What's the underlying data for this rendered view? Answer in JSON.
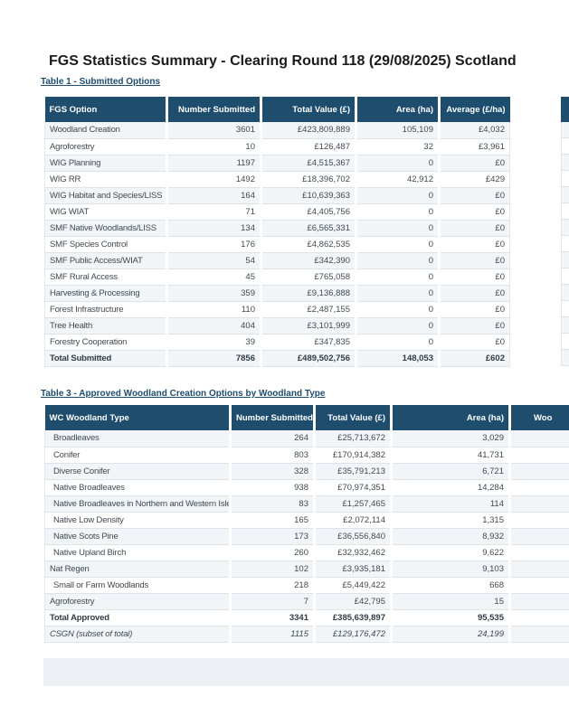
{
  "page": {
    "title": "FGS Statistics Summary - Clearing Round 118 (29/08/2025) Scotland"
  },
  "colors": {
    "header_bg": "#1e4d6e",
    "header_text": "#ffffff",
    "row_alt_bg": "#f1f5f8",
    "row_bg": "#ffffff",
    "row_border": "#dce4ea",
    "cell_text": "#404a52",
    "label_link": "#1e4d6e",
    "bottom_band_bg": "#edf1f5"
  },
  "table1": {
    "label": "Table 1 - Submitted Options",
    "columns": [
      "FGS Option",
      "Number Submitted",
      "Total Value (£)",
      "Area (ha)",
      "Average (£/ha)"
    ],
    "rows": [
      {
        "option": "Woodland Creation",
        "number": "3601",
        "value": "£423,809,889",
        "area": "105,109",
        "average": "£4,032"
      },
      {
        "option": "Agroforestry",
        "number": "10",
        "value": "£126,487",
        "area": "32",
        "average": "£3,961"
      },
      {
        "option": "WIG Planning",
        "number": "1197",
        "value": "£4,515,367",
        "area": "0",
        "average": "£0"
      },
      {
        "option": "WIG RR",
        "number": "1492",
        "value": "£18,396,702",
        "area": "42,912",
        "average": "£429"
      },
      {
        "option": "WIG Habitat and Species/LISS",
        "number": "164",
        "value": "£10,639,363",
        "area": "0",
        "average": "£0"
      },
      {
        "option": "WIG WIAT",
        "number": "71",
        "value": "£4,405,756",
        "area": "0",
        "average": "£0"
      },
      {
        "option": "SMF Native Woodlands/LISS",
        "number": "134",
        "value": "£6,565,331",
        "area": "0",
        "average": "£0"
      },
      {
        "option": "SMF Species Control",
        "number": "176",
        "value": "£4,862,535",
        "area": "0",
        "average": "£0"
      },
      {
        "option": "SMF Public Access/WIAT",
        "number": "54",
        "value": "£342,390",
        "area": "0",
        "average": "£0"
      },
      {
        "option": "SMF Rural Access",
        "number": "45",
        "value": "£765,058",
        "area": "0",
        "average": "£0"
      },
      {
        "option": "Harvesting & Processing",
        "number": "359",
        "value": "£9,136,888",
        "area": "0",
        "average": "£0"
      },
      {
        "option": "Forest Infrastructure",
        "number": "110",
        "value": "£2,487,155",
        "area": "0",
        "average": "£0"
      },
      {
        "option": "Tree Health",
        "number": "404",
        "value": "£3,101,999",
        "area": "0",
        "average": "£0"
      },
      {
        "option": "Forestry Cooperation",
        "number": "39",
        "value": "£347,835",
        "area": "0",
        "average": "£0"
      },
      {
        "option": "Total Submitted",
        "number": "7856",
        "value": "£489,502,756",
        "area": "148,053",
        "average": "£602",
        "bold": true
      }
    ]
  },
  "table2_sliver": {
    "note": "adjacent table cut off at right edge of page",
    "row_count": 15
  },
  "table3": {
    "label": "Table 3 - Approved Woodland Creation Options by Woodland Type",
    "columns": [
      "WC Woodland Type",
      "Number Submitted",
      "Total Value (£)",
      "Area (ha)",
      "Woo"
    ],
    "rows": [
      {
        "type": "Broadleaves",
        "number": "264",
        "value": "£25,713,672",
        "area": "3,029",
        "indent": true
      },
      {
        "type": "Conifer",
        "number": "803",
        "value": "£170,914,382",
        "area": "41,731",
        "indent": true
      },
      {
        "type": "Diverse Conifer",
        "number": "328",
        "value": "£35,791,213",
        "area": "6,721",
        "indent": true
      },
      {
        "type": "Native Broadleaves",
        "number": "938",
        "value": "£70,974,351",
        "area": "14,284",
        "indent": true
      },
      {
        "type": "Native Broadleaves in Northern and Western Isles",
        "number": "83",
        "value": "£1,257,465",
        "area": "114",
        "indent": true
      },
      {
        "type": "Native Low Density",
        "number": "165",
        "value": "£2,072,114",
        "area": "1,315",
        "indent": true
      },
      {
        "type": "Native Scots Pine",
        "number": "173",
        "value": "£36,556,840",
        "area": "8,932",
        "indent": true
      },
      {
        "type": "Native Upland Birch",
        "number": "260",
        "value": "£32,932,462",
        "area": "9,622",
        "indent": true
      },
      {
        "type": "Nat Regen",
        "number": "102",
        "value": "£3,935,181",
        "area": "9,103"
      },
      {
        "type": "Small or Farm Woodlands",
        "number": "218",
        "value": "£5,449,422",
        "area": "668",
        "indent": true
      },
      {
        "type": "Agroforestry",
        "number": "7",
        "value": "£42,795",
        "area": "15"
      },
      {
        "type": "Total Approved",
        "number": "3341",
        "value": "£385,639,897",
        "area": "95,535",
        "bold": true
      },
      {
        "type": "CSGN (subset of total)",
        "number": "1115",
        "value": "£129,176,472",
        "area": "24,199",
        "italic": true
      }
    ]
  }
}
